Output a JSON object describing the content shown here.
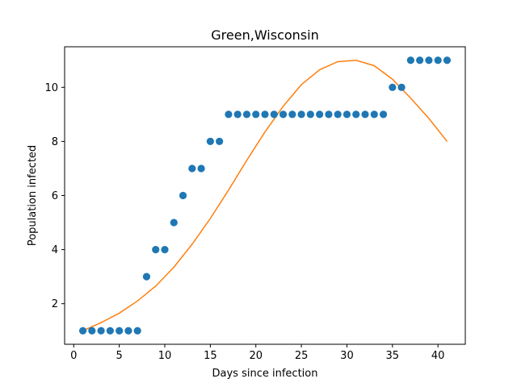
{
  "chart_data": {
    "type": "scatter",
    "title": "Green,Wisconsin",
    "xlabel": "Days since infection",
    "ylabel": "Population infected",
    "xlim": [
      -1.0,
      43.0
    ],
    "ylim": [
      0.5,
      11.5
    ],
    "xticks": [
      0,
      5,
      10,
      15,
      20,
      25,
      30,
      35,
      40
    ],
    "yticks": [
      2,
      4,
      6,
      8,
      10
    ],
    "grid": false,
    "legend": "none",
    "colors": {
      "observed": "#1f77b4",
      "fit": "#ff7f0e"
    },
    "series": [
      {
        "kind": "scatter",
        "x": [
          1,
          2,
          3,
          4,
          5,
          6,
          7,
          8,
          9,
          10,
          11,
          12,
          13,
          14,
          15,
          16,
          17,
          18,
          19,
          20,
          21,
          22,
          23,
          24,
          25,
          26,
          27,
          28,
          29,
          30,
          31,
          32,
          33,
          34,
          35,
          36,
          37,
          38,
          39,
          40,
          41
        ],
        "y": [
          1,
          1,
          1,
          1,
          1,
          1,
          1,
          3,
          4,
          4,
          5,
          6,
          7,
          7,
          8,
          8,
          9,
          9,
          9,
          9,
          9,
          9,
          9,
          9,
          9,
          9,
          9,
          9,
          9,
          9,
          9,
          9,
          9,
          9,
          10,
          10,
          11,
          11,
          11,
          11,
          11
        ]
      },
      {
        "kind": "line",
        "x": [
          1,
          3,
          5,
          7,
          9,
          11,
          13,
          15,
          17,
          19,
          21,
          23,
          25,
          27,
          29,
          31,
          33,
          35,
          37,
          39,
          41
        ],
        "y": [
          1.0,
          1.3,
          1.65,
          2.1,
          2.65,
          3.35,
          4.2,
          5.15,
          6.2,
          7.3,
          8.35,
          9.3,
          10.1,
          10.65,
          10.95,
          11.0,
          10.8,
          10.3,
          9.6,
          8.85,
          8.0
        ]
      }
    ]
  }
}
